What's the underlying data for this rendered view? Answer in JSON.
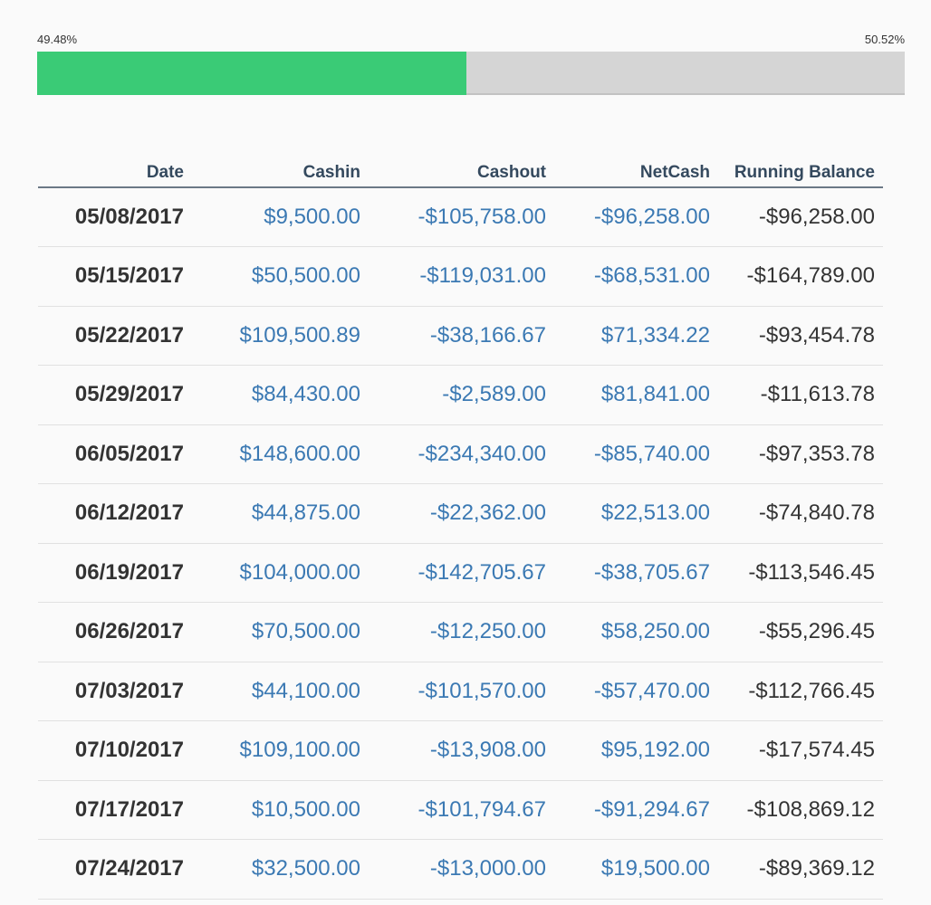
{
  "progress": {
    "segments": [
      {
        "value": 49.48,
        "label": "49.48%"
      },
      {
        "value": 50.52,
        "label": "50.52%"
      }
    ]
  },
  "table": {
    "headers": [
      "Date",
      "Cashin",
      "Cashout",
      "NetCash",
      "Running Balance"
    ],
    "rows": [
      [
        "05/08/2017",
        "$9,500.00",
        "-$105,758.00",
        "-$96,258.00",
        "-$96,258.00"
      ],
      [
        "05/15/2017",
        "$50,500.00",
        "-$119,031.00",
        "-$68,531.00",
        "-$164,789.00"
      ],
      [
        "05/22/2017",
        "$109,500.89",
        "-$38,166.67",
        "$71,334.22",
        "-$93,454.78"
      ],
      [
        "05/29/2017",
        "$84,430.00",
        "-$2,589.00",
        "$81,841.00",
        "-$11,613.78"
      ],
      [
        "06/05/2017",
        "$148,600.00",
        "-$234,340.00",
        "-$85,740.00",
        "-$97,353.78"
      ],
      [
        "06/12/2017",
        "$44,875.00",
        "-$22,362.00",
        "$22,513.00",
        "-$74,840.78"
      ],
      [
        "06/19/2017",
        "$104,000.00",
        "-$142,705.67",
        "-$38,705.67",
        "-$113,546.45"
      ],
      [
        "06/26/2017",
        "$70,500.00",
        "-$12,250.00",
        "$58,250.00",
        "-$55,296.45"
      ],
      [
        "07/03/2017",
        "$44,100.00",
        "-$101,570.00",
        "-$57,470.00",
        "-$112,766.45"
      ],
      [
        "07/10/2017",
        "$109,100.00",
        "-$13,908.00",
        "$95,192.00",
        "-$17,574.45"
      ],
      [
        "07/17/2017",
        "$10,500.00",
        "-$101,794.67",
        "-$91,294.67",
        "-$108,869.12"
      ],
      [
        "07/24/2017",
        "$32,500.00",
        "-$13,000.00",
        "$19,500.00",
        "-$89,369.12"
      ]
    ]
  }
}
